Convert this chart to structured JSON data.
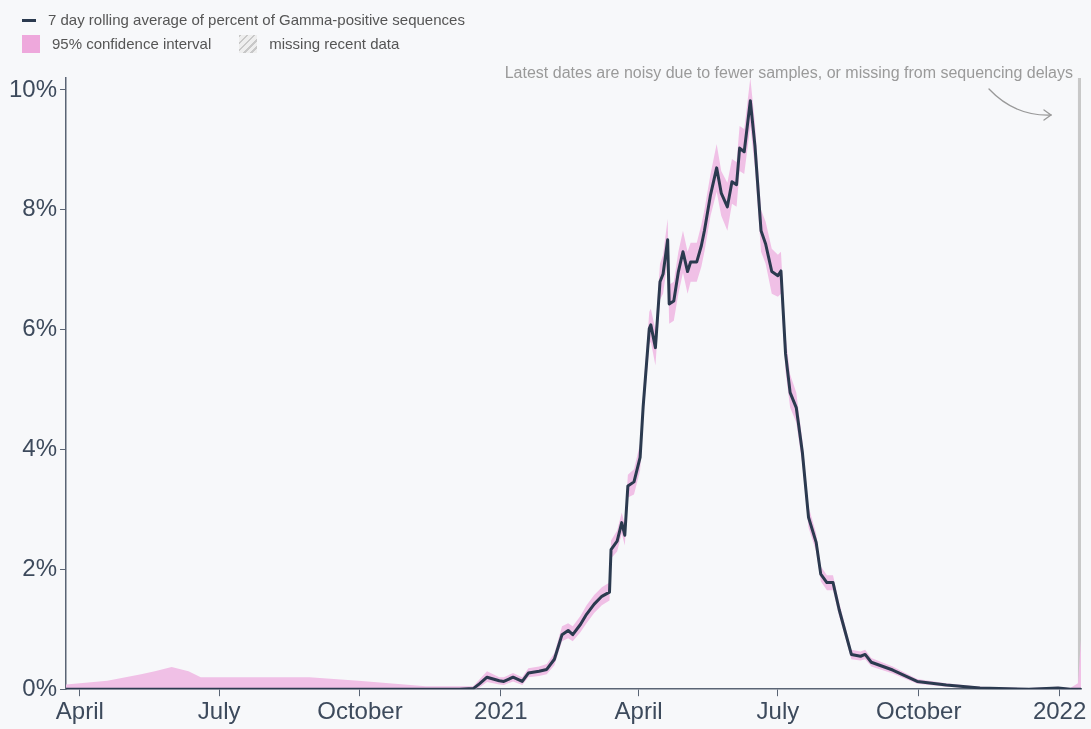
{
  "chart_data": {
    "type": "line",
    "x": [
      "2020-03-23",
      "2020-04-19",
      "2020-05-11",
      "2020-05-20",
      "2020-05-31",
      "2020-06-11",
      "2020-06-19",
      "2020-07-16",
      "2020-08-29",
      "2020-09-30",
      "2020-11-13",
      "2020-12-05",
      "2020-12-14",
      "2020-12-18",
      "2020-12-23",
      "2020-12-31",
      "2021-01-03",
      "2021-01-09",
      "2021-01-15",
      "2021-01-19",
      "2021-01-26",
      "2021-01-31",
      "2021-02-05",
      "2021-02-10",
      "2021-02-14",
      "2021-02-17",
      "2021-02-22",
      "2021-02-26",
      "2021-03-03",
      "2021-03-08",
      "2021-03-13",
      "2021-03-14",
      "2021-03-18",
      "2021-03-21",
      "2021-03-23",
      "2021-03-25",
      "2021-03-29",
      "2021-04-02",
      "2021-04-04",
      "2021-04-08",
      "2021-04-09",
      "2021-04-12",
      "2021-04-15",
      "2021-04-17",
      "2021-04-20",
      "2021-04-21",
      "2021-04-24",
      "2021-04-27",
      "2021-04-30",
      "2021-05-03",
      "2021-05-05",
      "2021-05-09",
      "2021-05-12",
      "2021-05-14",
      "2021-05-18",
      "2021-05-22",
      "2021-05-25",
      "2021-05-29",
      "2021-06-01",
      "2021-06-04",
      "2021-06-06",
      "2021-06-09",
      "2021-06-13",
      "2021-06-16",
      "2021-06-20",
      "2021-06-23",
      "2021-06-27",
      "2021-07-01",
      "2021-07-03",
      "2021-07-06",
      "2021-07-09",
      "2021-07-13",
      "2021-07-17",
      "2021-07-21",
      "2021-07-26",
      "2021-07-29",
      "2021-08-02",
      "2021-08-06",
      "2021-08-10",
      "2021-08-18",
      "2021-08-24",
      "2021-08-27",
      "2021-08-31",
      "2021-09-14",
      "2021-09-30",
      "2021-10-19",
      "2021-11-10",
      "2021-12-12",
      "2021-12-31",
      "2022-01-08",
      "2022-01-13",
      "2022-01-15"
    ],
    "series": [
      {
        "name": "7 day rolling average of percent of Gamma-positive sequences",
        "color": "#2b3a4f",
        "values": [
          0,
          0,
          0,
          0,
          0,
          0,
          0,
          0,
          0,
          0,
          0,
          0,
          0.01,
          0.09,
          0.2,
          0.14,
          0.13,
          0.2,
          0.13,
          0.27,
          0.3,
          0.33,
          0.5,
          0.91,
          0.98,
          0.91,
          1.08,
          1.25,
          1.42,
          1.55,
          1.62,
          2.33,
          2.47,
          2.78,
          2.57,
          3.39,
          3.46,
          3.87,
          4.72,
          6.02,
          6.08,
          5.7,
          6.8,
          6.93,
          7.5,
          6.43,
          6.48,
          6.97,
          7.3,
          6.97,
          7.13,
          7.13,
          7.4,
          7.65,
          8.25,
          8.7,
          8.28,
          8.05,
          8.47,
          8.42,
          9.03,
          8.97,
          9.82,
          9.07,
          7.65,
          7.43,
          6.97,
          6.9,
          6.98,
          5.6,
          4.95,
          4.7,
          3.95,
          2.87,
          2.45,
          1.92,
          1.78,
          1.78,
          1.33,
          0.58,
          0.55,
          0.58,
          0.45,
          0.32,
          0.13,
          0.07,
          0.02,
          0,
          0.02,
          0,
          0,
          0
        ],
        "lower": [
          0,
          0,
          0,
          0,
          0,
          0,
          0,
          0,
          0,
          0,
          0,
          0,
          0,
          0.03,
          0.12,
          0.08,
          0.07,
          0.13,
          0.07,
          0.2,
          0.22,
          0.25,
          0.4,
          0.8,
          0.85,
          0.8,
          0.95,
          1.1,
          1.27,
          1.4,
          1.48,
          2.18,
          2.3,
          2.6,
          2.4,
          3.2,
          3.25,
          3.65,
          4.5,
          5.75,
          5.8,
          5.4,
          6.5,
          6.6,
          7.15,
          6.1,
          6.15,
          6.6,
          6.95,
          6.6,
          6.8,
          6.8,
          7.05,
          7.3,
          7.9,
          8.3,
          7.9,
          7.65,
          8.1,
          8.05,
          8.65,
          8.6,
          9.4,
          8.7,
          7.3,
          7.1,
          6.6,
          6.55,
          6.6,
          5.3,
          4.7,
          4.45,
          3.75,
          2.7,
          2.3,
          1.8,
          1.65,
          1.65,
          1.22,
          0.5,
          0.48,
          0.5,
          0.38,
          0.26,
          0.09,
          0.04,
          0.01,
          0,
          0,
          0,
          0,
          0
        ],
        "upper": [
          0.08,
          0.14,
          0.25,
          0.3,
          0.37,
          0.3,
          0.2,
          0.2,
          0.2,
          0.14,
          0.05,
          0.05,
          0.05,
          0.16,
          0.3,
          0.2,
          0.2,
          0.27,
          0.2,
          0.35,
          0.38,
          0.42,
          0.6,
          1.05,
          1.1,
          1.05,
          1.22,
          1.4,
          1.57,
          1.7,
          1.78,
          2.48,
          2.65,
          2.95,
          2.75,
          3.58,
          3.67,
          4.1,
          4.95,
          6.3,
          6.35,
          6.0,
          7.1,
          7.25,
          7.85,
          6.75,
          6.8,
          7.3,
          7.65,
          7.3,
          7.45,
          7.45,
          7.75,
          8.0,
          8.6,
          9.1,
          8.65,
          8.45,
          8.85,
          8.8,
          9.4,
          9.35,
          10.2,
          9.45,
          8.0,
          7.8,
          7.35,
          7.25,
          7.3,
          5.9,
          5.25,
          4.95,
          4.15,
          3.05,
          2.6,
          2.05,
          1.9,
          1.9,
          1.45,
          0.66,
          0.63,
          0.66,
          0.52,
          0.38,
          0.17,
          0.1,
          0.04,
          0.02,
          0.04,
          0.02,
          0.1,
          0.83
        ]
      }
    ],
    "xlim": [
      "2020-03-23",
      "2022-01-15"
    ],
    "xticks": [
      {
        "value": "2020-04-01",
        "label": "April"
      },
      {
        "value": "2020-07-01",
        "label": "July"
      },
      {
        "value": "2020-10-01",
        "label": "October"
      },
      {
        "value": "2021-01-01",
        "label": "2021"
      },
      {
        "value": "2021-04-01",
        "label": "April"
      },
      {
        "value": "2021-07-01",
        "label": "July"
      },
      {
        "value": "2021-10-01",
        "label": "October"
      },
      {
        "value": "2022-01-01",
        "label": "2022"
      }
    ],
    "ylim": [
      0,
      10.2
    ],
    "yticks": [
      {
        "value": 0,
        "label": "0%"
      },
      {
        "value": 2,
        "label": "2%"
      },
      {
        "value": 4,
        "label": "4%"
      },
      {
        "value": 6,
        "label": "6%"
      },
      {
        "value": 8,
        "label": "8%"
      },
      {
        "value": 10,
        "label": "10%"
      }
    ],
    "bands": [
      {
        "axis": "x",
        "from": "2022-01-13",
        "to": "2022-01-15",
        "label": "missing recent data",
        "color": "#c8c8c8"
      }
    ],
    "annotations": [
      "95% confidence interval",
      "Latest dates are noisy due to fewer samples, or missing from sequencing delays"
    ],
    "grid": false,
    "legend": "top left"
  }
}
